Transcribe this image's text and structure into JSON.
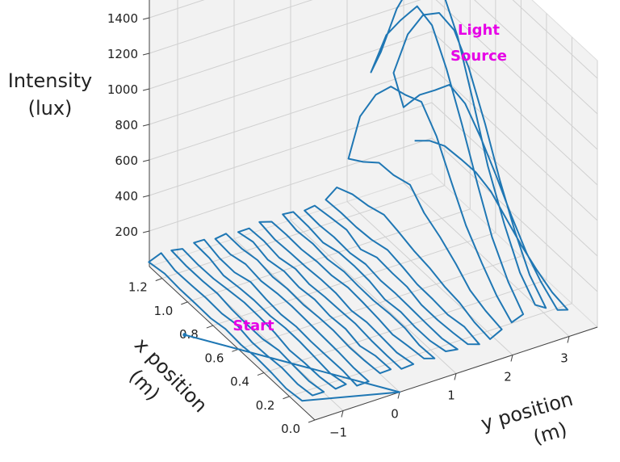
{
  "colors": {
    "series": "#1f77b4",
    "annotation": "#e600e6",
    "pane": "#f2f2f2",
    "grid": "#d0d0d0"
  },
  "chart_data": {
    "type": "line3d",
    "title": "",
    "zlabel_lines": [
      "Intensity",
      "(lux)"
    ],
    "xlabel_lines": [
      "x position",
      "(m)"
    ],
    "ylabel_lines": [
      "y position",
      "(m)"
    ],
    "x_ticks": [
      "0.0",
      "0.2",
      "0.4",
      "0.6",
      "0.8",
      "1.0",
      "1.2"
    ],
    "y_ticks": [
      "−1",
      "0",
      "1",
      "2",
      "3"
    ],
    "z_ticks": [
      "200",
      "400",
      "600",
      "800",
      "1000",
      "1200",
      "1400"
    ],
    "xlim": [
      0,
      1.3
    ],
    "ylim": [
      -1.5,
      3.5
    ],
    "zlim": [
      0,
      1500
    ],
    "grid": true,
    "annotations": [
      {
        "text": "Start",
        "at": [
          0.8,
          -2.0,
          0
        ]
      },
      {
        "text_lines": [
          "Light",
          "Source"
        ],
        "at": [
          0.9,
          2.6,
          1500
        ]
      }
    ],
    "path_summary": {
      "start": [
        0.8,
        -2.0,
        0
      ],
      "turn": [
        0.0,
        0.0,
        0
      ],
      "sweep_x_range": [
        0.1,
        1.3
      ],
      "sweep_y_range": [
        -1.5,
        3.2
      ],
      "peak": [
        0.9,
        2.6,
        1480
      ],
      "peak_near_y": 2.6,
      "sweep_passes": 25
    }
  }
}
